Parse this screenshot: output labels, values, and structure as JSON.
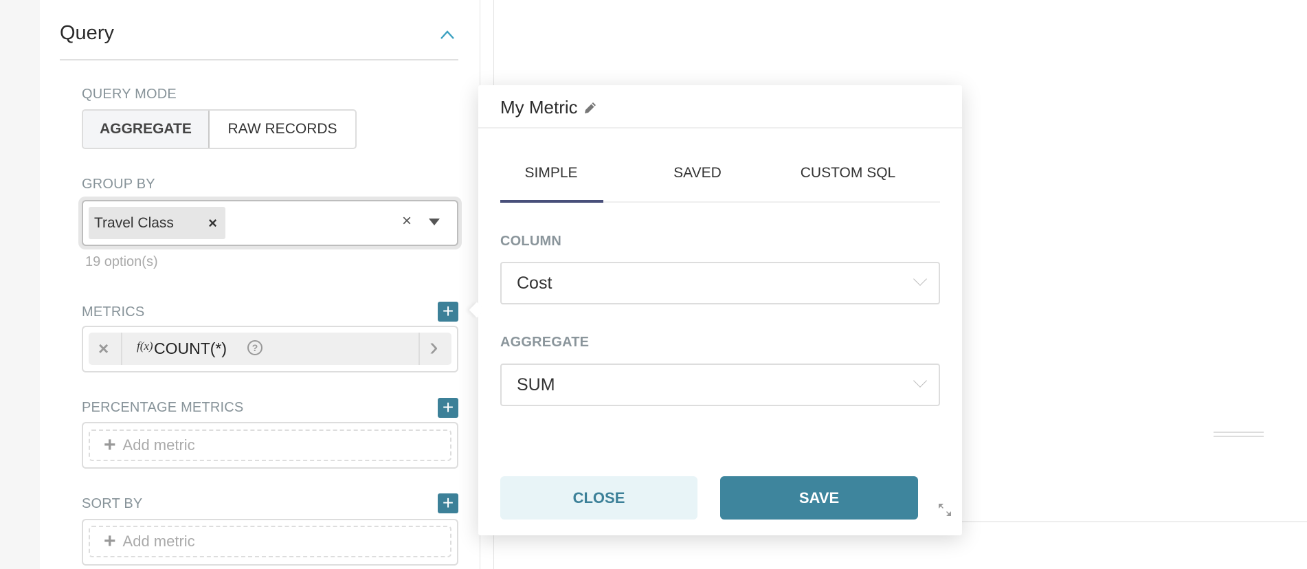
{
  "panel": {
    "title": "Query",
    "query_mode": {
      "label": "QUERY MODE",
      "options": [
        "AGGREGATE",
        "RAW RECORDS"
      ],
      "selected": "AGGREGATE"
    },
    "group_by": {
      "label": "GROUP BY",
      "tags": [
        "Travel Class"
      ],
      "tag_remove": "×",
      "clear": "×",
      "hint": "19 option(s)"
    },
    "metrics": {
      "label": "METRICS",
      "add": "+",
      "items": [
        {
          "remove": "×",
          "fx": "f(x)",
          "label": "COUNT(*)",
          "help": "?",
          "expand": "›"
        }
      ]
    },
    "percentage_metrics": {
      "label": "PERCENTAGE METRICS",
      "add": "+",
      "placeholder_plus": "+",
      "placeholder": "Add metric"
    },
    "sort_by": {
      "label": "SORT BY",
      "add": "+",
      "placeholder_plus": "+",
      "placeholder": "Add metric"
    }
  },
  "popover": {
    "title": "My Metric",
    "edit_icon": "pencil-icon",
    "tabs": [
      "SIMPLE",
      "SAVED",
      "CUSTOM SQL"
    ],
    "active_tab": "SIMPLE",
    "column": {
      "label": "COLUMN",
      "value": "Cost"
    },
    "aggregate": {
      "label": "AGGREGATE",
      "value": "SUM"
    },
    "close": "CLOSE",
    "save": "SAVE"
  },
  "colors": {
    "accent": "#3e859d",
    "tab_underline": "#484f7a",
    "close_bg": "#e8f4f7"
  }
}
